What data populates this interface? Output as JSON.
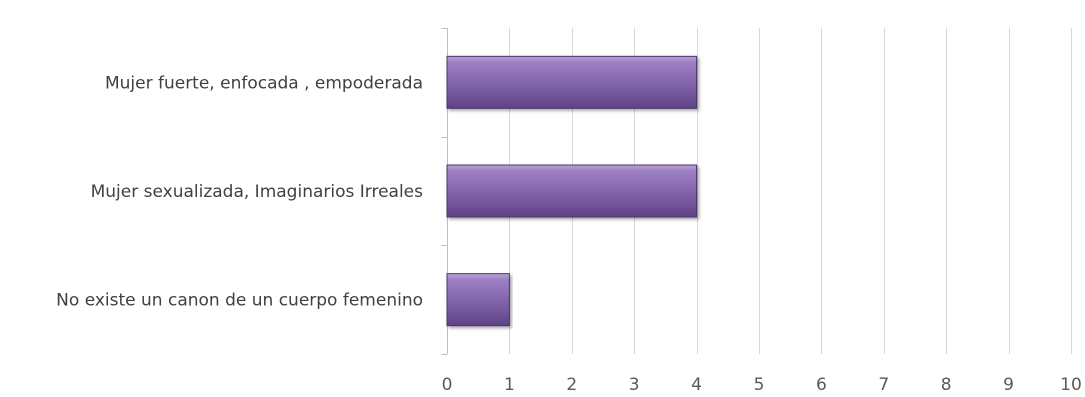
{
  "chart_data": {
    "type": "bar",
    "orientation": "horizontal",
    "categories": [
      "Mujer fuerte, enfocada , empoderada",
      "Mujer sexualizada, Imaginarios Irreales",
      "No existe un canon de un cuerpo femenino"
    ],
    "values": [
      4,
      4,
      1
    ],
    "xlim": [
      0,
      10
    ],
    "x_ticks": [
      "0",
      "1",
      "2",
      "3",
      "4",
      "5",
      "6",
      "7",
      "8",
      "9",
      "10"
    ],
    "grid": "vertical",
    "legend": "none",
    "bar_color": "#8062aa"
  }
}
